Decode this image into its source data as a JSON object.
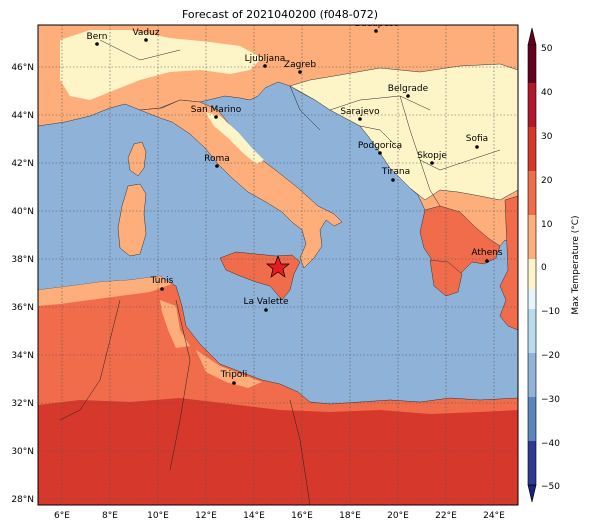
{
  "title": "Forecast of 2021040200 (f048-072)",
  "colorbar_label": "Max Temperature (°C)",
  "map": {
    "lon_ticks": [
      "6°E",
      "8°E",
      "10°E",
      "12°E",
      "14°E",
      "16°E",
      "18°E",
      "20°E",
      "22°E",
      "24°E"
    ],
    "lat_ticks": [
      "28°N",
      "30°N",
      "32°N",
      "34°N",
      "36°N",
      "38°N",
      "40°N",
      "42°N",
      "44°N",
      "46°N"
    ],
    "cities": [
      {
        "name": "Bern"
      },
      {
        "name": "Vaduz"
      },
      {
        "name": "Budapest"
      },
      {
        "name": "Ljubljana"
      },
      {
        "name": "Zagreb"
      },
      {
        "name": "Belgrade"
      },
      {
        "name": "Sarajevo"
      },
      {
        "name": "San Marino"
      },
      {
        "name": "Podgorica"
      },
      {
        "name": "Skopje"
      },
      {
        "name": "Sofia"
      },
      {
        "name": "Roma"
      },
      {
        "name": "Tirana"
      },
      {
        "name": "Athens"
      },
      {
        "name": "Tunis"
      },
      {
        "name": "La Valette"
      },
      {
        "name": "Tripoli"
      }
    ]
  },
  "colorbar": {
    "ticks": [
      "50",
      "40",
      "30",
      "20",
      "10",
      "0",
      "−10",
      "−20",
      "−30",
      "−40",
      "−50"
    ],
    "colors": [
      "#67001f",
      "#b2182b",
      "#d6382c",
      "#f06c4a",
      "#fdae7b",
      "#fdf5c8",
      "#e6f5fb",
      "#b9dced",
      "#8fb4d8",
      "#5a86bd",
      "#2f3b93",
      "#1a237e"
    ]
  },
  "colors": {
    "sea": "#8fb2d8",
    "land_warm": "#fdae7b",
    "land_cool": "#fdf5c8",
    "land_hot": "#f06c4a",
    "land_hottest": "#d6382c",
    "star": "#e8191f"
  }
}
